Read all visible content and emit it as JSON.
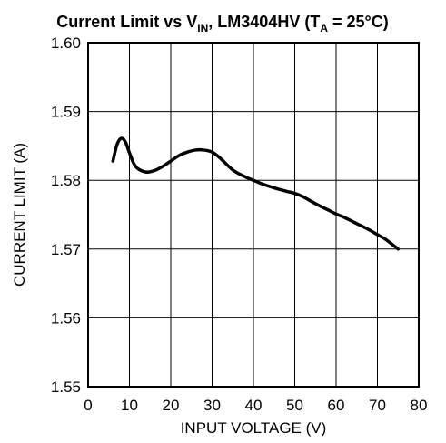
{
  "chart_data": {
    "type": "line",
    "title": {
      "part1": "Current Limit vs V",
      "sub1": "IN",
      "part2": ", LM3404HV (T",
      "sub2": "A",
      "part3": " = 25°C)"
    },
    "xlabel": "INPUT VOLTAGE (V)",
    "ylabel": "CURRENT LIMIT (A)",
    "xlim": [
      0,
      80
    ],
    "ylim": [
      1.55,
      1.6
    ],
    "xticks": [
      "0",
      "10",
      "20",
      "30",
      "40",
      "50",
      "60",
      "70",
      "80"
    ],
    "yticks": [
      "1.55",
      "1.56",
      "1.57",
      "1.58",
      "1.59",
      "1.60"
    ],
    "grid": true,
    "series": [
      {
        "color": "#000000",
        "x": [
          6,
          7,
          8,
          9,
          10,
          11,
          12,
          14,
          16,
          18,
          20,
          22,
          24,
          26,
          28,
          30,
          32,
          35,
          38,
          40,
          42,
          45,
          48,
          50,
          52,
          55,
          58,
          60,
          62,
          65,
          68,
          70,
          72,
          75
        ],
        "y": [
          1.5828,
          1.5852,
          1.5861,
          1.5856,
          1.584,
          1.5825,
          1.5817,
          1.5812,
          1.5814,
          1.582,
          1.5828,
          1.5836,
          1.5841,
          1.5844,
          1.5844,
          1.5841,
          1.5832,
          1.5815,
          1.5805,
          1.58,
          1.5795,
          1.5789,
          1.5784,
          1.5781,
          1.5776,
          1.5766,
          1.5757,
          1.5751,
          1.5746,
          1.5737,
          1.5728,
          1.5721,
          1.5714,
          1.57
        ]
      }
    ]
  }
}
